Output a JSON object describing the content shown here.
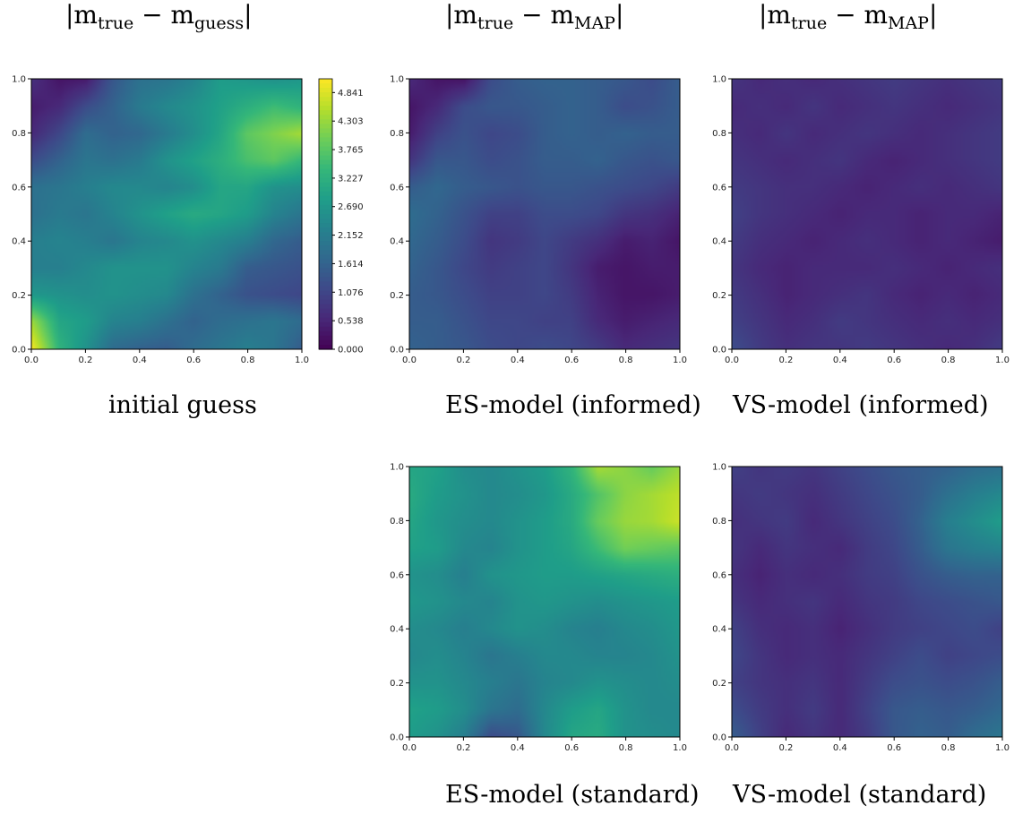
{
  "headers": [
    {
      "pre": "|m",
      "sub1": "true",
      "mid": " − m",
      "sub2": "guess",
      "post": "|"
    },
    {
      "pre": "|m",
      "sub1": "true",
      "mid": " − m",
      "sub2": "MAP",
      "post": "|"
    },
    {
      "pre": "|m",
      "sub1": "true",
      "mid": " − m",
      "sub2": "MAP",
      "post": "|"
    }
  ],
  "captions": {
    "initial": "initial guess",
    "es_informed": "ES-model (informed)",
    "vs_informed": "VS-model (informed)",
    "es_standard": "ES-model (standard)",
    "vs_standard": "VS-model (standard)"
  },
  "chart_data": [
    {
      "type": "heatmap",
      "panel": "initial guess",
      "xlim": [
        0,
        1
      ],
      "ylim": [
        0,
        1
      ],
      "xticks": [
        "0.0",
        "0.2",
        "0.4",
        "0.6",
        "0.8",
        "1.0"
      ],
      "yticks": [
        "0.0",
        "0.2",
        "0.4",
        "0.6",
        "0.8",
        "1.0"
      ],
      "colormap": "viridis",
      "colorbar": {
        "range": [
          0,
          5.1
        ],
        "ticks": [
          "0.000",
          "0.538",
          "1.076",
          "1.614",
          "2.152",
          "2.690",
          "3.227",
          "3.765",
          "4.303",
          "4.841"
        ]
      },
      "grid": [
        [
          5.0,
          3.3,
          2.6,
          1.8,
          1.6,
          1.5,
          1.8,
          2.0,
          2.2,
          2.0,
          1.5
        ],
        [
          4.3,
          3.0,
          2.8,
          2.3,
          2.2,
          1.9,
          1.6,
          1.8,
          1.9,
          2.0,
          1.8
        ],
        [
          2.7,
          2.6,
          2.5,
          2.6,
          2.5,
          2.4,
          1.9,
          1.6,
          1.3,
          1.2,
          1.1
        ],
        [
          2.2,
          2.2,
          2.4,
          2.6,
          2.6,
          2.6,
          2.3,
          2.1,
          1.5,
          1.4,
          1.3
        ],
        [
          2.2,
          2.3,
          2.2,
          2.0,
          2.3,
          2.4,
          2.6,
          2.4,
          2.2,
          1.7,
          1.5
        ],
        [
          1.9,
          2.1,
          2.0,
          2.3,
          2.6,
          2.9,
          3.1,
          3.0,
          2.8,
          2.3,
          2.0
        ],
        [
          1.9,
          2.0,
          2.2,
          2.4,
          2.4,
          2.3,
          2.5,
          3.0,
          3.0,
          2.6,
          2.5
        ],
        [
          1.2,
          1.6,
          2.0,
          1.9,
          2.1,
          2.6,
          2.9,
          3.2,
          3.6,
          3.8,
          3.4
        ],
        [
          0.6,
          1.1,
          1.8,
          1.6,
          1.7,
          2.1,
          2.5,
          3.0,
          3.8,
          4.1,
          4.4
        ],
        [
          0.4,
          0.6,
          1.2,
          1.6,
          2.1,
          2.4,
          2.6,
          2.9,
          3.2,
          3.5,
          3.3
        ],
        [
          0.7,
          0.3,
          0.4,
          1.4,
          1.9,
          2.0,
          2.3,
          2.8,
          2.7,
          2.6,
          2.7
        ]
      ]
    },
    {
      "type": "heatmap",
      "panel": "ES-model (informed)",
      "xlim": [
        0,
        1
      ],
      "ylim": [
        0,
        1
      ],
      "xticks": [
        "0.0",
        "0.2",
        "0.4",
        "0.6",
        "0.8",
        "1.0"
      ],
      "yticks": [
        "0.0",
        "0.2",
        "0.4",
        "0.6",
        "0.8",
        "1.0"
      ],
      "colormap": "viridis",
      "vrange": [
        0,
        5.1
      ],
      "grid": [
        [
          1.6,
          1.5,
          1.4,
          1.2,
          1.1,
          1.2,
          1.1,
          0.9,
          0.6,
          0.7,
          0.8
        ],
        [
          1.5,
          1.5,
          1.3,
          1.1,
          1.1,
          1.0,
          1.0,
          0.6,
          0.4,
          0.5,
          0.6
        ],
        [
          1.5,
          1.4,
          1.2,
          1.0,
          1.0,
          1.1,
          0.9,
          0.5,
          0.3,
          0.3,
          0.4
        ],
        [
          1.6,
          1.4,
          1.1,
          0.9,
          1.0,
          1.1,
          0.8,
          0.4,
          0.3,
          0.4,
          0.4
        ],
        [
          1.7,
          1.5,
          1.2,
          0.8,
          0.9,
          1.1,
          0.9,
          0.7,
          0.4,
          0.5,
          0.3
        ],
        [
          1.8,
          1.6,
          1.3,
          1.0,
          1.0,
          1.2,
          1.2,
          1.1,
          0.8,
          0.7,
          0.5
        ],
        [
          1.5,
          1.7,
          1.5,
          1.4,
          1.3,
          1.4,
          1.4,
          1.3,
          1.2,
          1.1,
          0.9
        ],
        [
          0.8,
          1.4,
          1.4,
          1.2,
          1.3,
          1.5,
          1.5,
          1.6,
          1.4,
          1.3,
          1.4
        ],
        [
          0.4,
          1.0,
          1.3,
          1.1,
          1.2,
          1.5,
          1.6,
          1.5,
          1.6,
          1.5,
          1.5
        ],
        [
          0.3,
          0.6,
          1.2,
          1.4,
          1.4,
          1.5,
          1.6,
          1.5,
          1.2,
          1.3,
          1.5
        ],
        [
          0.6,
          0.3,
          0.3,
          1.2,
          1.5,
          1.6,
          1.6,
          1.5,
          1.4,
          1.2,
          1.5
        ]
      ]
    },
    {
      "type": "heatmap",
      "panel": "VS-model (informed)",
      "xlim": [
        0,
        1
      ],
      "ylim": [
        0,
        1
      ],
      "xticks": [
        "0.0",
        "0.2",
        "0.4",
        "0.6",
        "0.8",
        "1.0"
      ],
      "yticks": [
        "0.0",
        "0.2",
        "0.4",
        "0.6",
        "0.8",
        "1.0"
      ],
      "colormap": "viridis",
      "vrange": [
        0,
        5.1
      ],
      "grid": [
        [
          1.2,
          0.9,
          0.7,
          0.8,
          0.8,
          0.9,
          0.8,
          0.7,
          0.6,
          0.7,
          0.9
        ],
        [
          1.0,
          0.8,
          0.6,
          0.7,
          0.9,
          0.8,
          0.7,
          0.6,
          0.7,
          0.6,
          0.7
        ],
        [
          0.9,
          0.7,
          0.5,
          0.6,
          0.7,
          0.8,
          0.6,
          0.5,
          0.6,
          0.5,
          0.6
        ],
        [
          0.8,
          0.6,
          0.5,
          0.6,
          0.6,
          0.6,
          0.7,
          0.6,
          0.5,
          0.6,
          0.7
        ],
        [
          0.9,
          0.7,
          0.6,
          0.5,
          0.6,
          0.7,
          0.6,
          0.5,
          0.6,
          0.5,
          0.4
        ],
        [
          1.0,
          0.8,
          0.7,
          0.6,
          0.5,
          0.6,
          0.6,
          0.5,
          0.6,
          0.6,
          0.5
        ],
        [
          0.9,
          0.8,
          0.7,
          0.7,
          0.6,
          0.5,
          0.6,
          0.7,
          0.6,
          0.7,
          0.8
        ],
        [
          0.8,
          0.7,
          0.6,
          0.7,
          0.8,
          0.6,
          0.5,
          0.6,
          0.7,
          0.8,
          0.9
        ],
        [
          0.7,
          0.6,
          0.8,
          0.6,
          0.7,
          0.8,
          0.7,
          0.6,
          0.7,
          0.8,
          0.9
        ],
        [
          0.6,
          0.7,
          0.6,
          0.8,
          0.6,
          0.7,
          0.8,
          0.7,
          0.6,
          0.7,
          0.8
        ],
        [
          0.8,
          0.6,
          0.7,
          0.6,
          0.7,
          0.8,
          0.9,
          0.8,
          0.7,
          0.8,
          0.9
        ]
      ]
    },
    {
      "type": "heatmap",
      "panel": "ES-model (standard)",
      "xlim": [
        0,
        1
      ],
      "ylim": [
        0,
        1
      ],
      "xticks": [
        "0.0",
        "0.2",
        "0.4",
        "0.6",
        "0.8",
        "1.0"
      ],
      "yticks": [
        "0.0",
        "0.2",
        "0.4",
        "0.6",
        "0.8",
        "1.0"
      ],
      "colormap": "viridis",
      "vrange": [
        0,
        5.1
      ],
      "grid": [
        [
          2.8,
          2.6,
          2.2,
          1.2,
          1.4,
          2.4,
          3.0,
          3.1,
          2.6,
          2.5,
          2.4
        ],
        [
          2.9,
          2.8,
          2.5,
          2.0,
          1.8,
          2.4,
          2.8,
          3.0,
          2.6,
          2.4,
          2.4
        ],
        [
          2.6,
          2.6,
          2.4,
          2.2,
          2.0,
          2.3,
          2.4,
          2.6,
          2.5,
          2.4,
          2.5
        ],
        [
          2.4,
          2.5,
          2.3,
          2.0,
          2.2,
          2.4,
          2.4,
          2.3,
          2.3,
          2.4,
          2.6
        ],
        [
          2.5,
          2.4,
          2.2,
          2.4,
          2.6,
          2.5,
          2.3,
          2.2,
          2.4,
          2.5,
          2.7
        ],
        [
          2.7,
          2.6,
          2.4,
          2.3,
          2.6,
          2.7,
          2.6,
          2.5,
          2.6,
          2.7,
          2.8
        ],
        [
          2.6,
          2.5,
          2.2,
          2.6,
          2.7,
          2.8,
          2.8,
          2.9,
          3.0,
          3.1,
          3.2
        ],
        [
          2.9,
          2.8,
          2.4,
          2.3,
          2.6,
          2.8,
          3.0,
          3.5,
          4.0,
          3.9,
          3.8
        ],
        [
          3.0,
          2.7,
          2.5,
          2.4,
          2.6,
          2.8,
          3.1,
          3.9,
          4.3,
          4.4,
          4.7
        ],
        [
          3.1,
          2.8,
          2.6,
          2.4,
          2.5,
          2.7,
          3.1,
          3.7,
          4.2,
          4.4,
          4.6
        ],
        [
          3.0,
          2.9,
          2.5,
          2.4,
          2.6,
          2.8,
          3.3,
          4.4,
          4.2,
          3.9,
          4.3
        ]
      ]
    },
    {
      "type": "heatmap",
      "panel": "VS-model (standard)",
      "xlim": [
        0,
        1
      ],
      "ylim": [
        0,
        1
      ],
      "xticks": [
        "0.0",
        "0.2",
        "0.4",
        "0.6",
        "0.8",
        "1.0"
      ],
      "yticks": [
        "0.0",
        "0.2",
        "0.4",
        "0.6",
        "0.8",
        "1.0"
      ],
      "colormap": "viridis",
      "vrange": [
        0,
        5.1
      ],
      "grid": [
        [
          1.5,
          1.0,
          0.6,
          0.8,
          0.6,
          0.9,
          1.4,
          1.6,
          1.5,
          1.8,
          2.0
        ],
        [
          1.2,
          0.9,
          0.7,
          0.9,
          0.6,
          1.0,
          1.4,
          1.5,
          1.4,
          1.5,
          1.7
        ],
        [
          1.0,
          0.8,
          0.7,
          0.8,
          0.6,
          0.9,
          1.2,
          1.3,
          1.2,
          1.3,
          1.5
        ],
        [
          1.1,
          0.8,
          0.6,
          0.7,
          0.6,
          0.8,
          1.0,
          1.2,
          1.0,
          1.1,
          1.2
        ],
        [
          1.0,
          0.7,
          0.6,
          0.7,
          0.5,
          0.7,
          0.9,
          1.0,
          1.1,
          1.2,
          1.0
        ],
        [
          0.8,
          0.6,
          0.7,
          0.8,
          0.6,
          0.8,
          0.9,
          1.1,
          1.2,
          1.3,
          1.4
        ],
        [
          0.7,
          0.5,
          0.7,
          0.6,
          0.7,
          0.9,
          1.0,
          1.3,
          1.5,
          1.6,
          1.6
        ],
        [
          0.8,
          0.6,
          0.8,
          0.7,
          0.6,
          0.9,
          1.1,
          1.5,
          2.0,
          2.2,
          2.3
        ],
        [
          0.7,
          0.8,
          0.9,
          0.6,
          0.8,
          1.0,
          1.2,
          1.6,
          2.2,
          2.5,
          2.8
        ],
        [
          0.8,
          0.9,
          0.8,
          0.7,
          0.9,
          1.1,
          1.3,
          1.5,
          1.9,
          2.2,
          2.4
        ],
        [
          1.0,
          0.8,
          0.9,
          0.8,
          1.0,
          1.2,
          1.4,
          1.5,
          1.6,
          1.8,
          1.9
        ]
      ]
    }
  ]
}
